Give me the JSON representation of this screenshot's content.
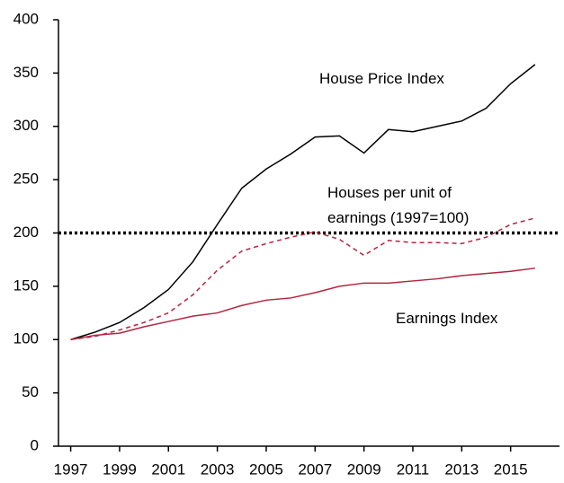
{
  "chart_data": {
    "type": "line",
    "x": [
      1997,
      1998,
      1999,
      2000,
      2001,
      2002,
      2003,
      2004,
      2005,
      2006,
      2007,
      2008,
      2009,
      2010,
      2011,
      2012,
      2013,
      2014,
      2015,
      2016
    ],
    "series": [
      {
        "name": "House Price Index",
        "color": "#000000",
        "dash": false,
        "values": [
          100,
          107,
          116,
          130,
          147,
          173,
          208,
          242,
          260,
          274,
          290,
          291,
          275,
          297,
          295,
          300,
          305,
          317,
          340,
          358
        ]
      },
      {
        "name": "Houses per unit of earnings (1997=100)",
        "color": "#b5243f",
        "dash": true,
        "values": [
          100,
          103,
          109,
          116,
          125,
          142,
          165,
          183,
          190,
          196,
          201,
          194,
          179,
          193,
          191,
          191,
          190,
          196,
          208,
          214
        ]
      },
      {
        "name": "Earnings Index",
        "color": "#b5243f",
        "dash": false,
        "values": [
          100,
          104,
          106,
          112,
          117,
          122,
          125,
          132,
          137,
          139,
          144,
          150,
          153,
          153,
          155,
          157,
          160,
          162,
          164,
          167
        ]
      }
    ],
    "reference_line": 200,
    "xlim": [
      1996.5,
      2017
    ],
    "xticks": [
      1997,
      1999,
      2001,
      2003,
      2005,
      2007,
      2009,
      2011,
      2013,
      2015
    ],
    "ylim": [
      0,
      400
    ],
    "yticks": [
      0,
      50,
      100,
      150,
      200,
      250,
      300,
      350,
      400
    ],
    "grid": false
  }
}
